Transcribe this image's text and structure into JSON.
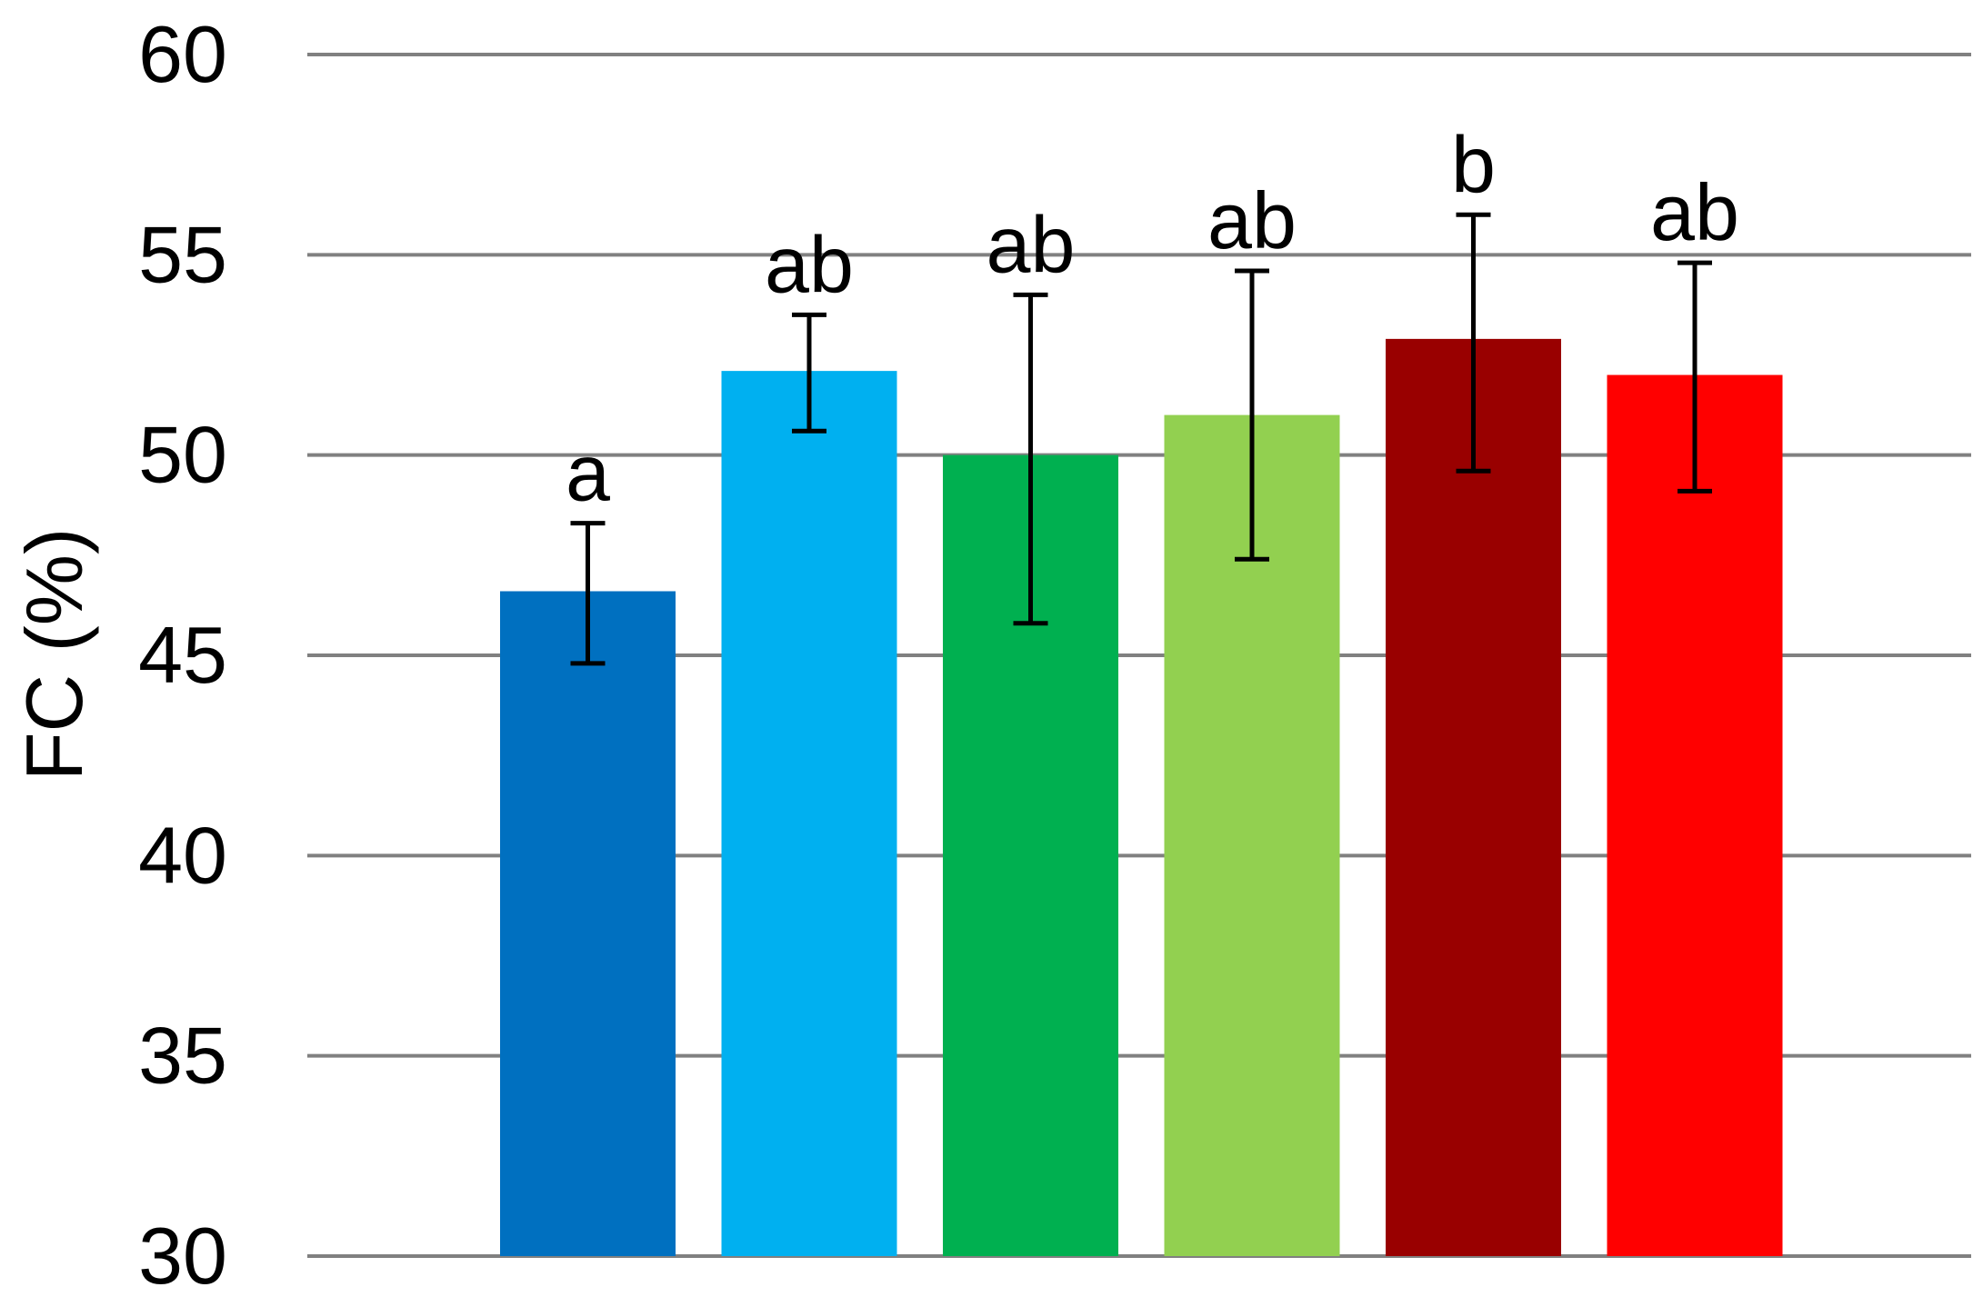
{
  "chart_data": {
    "type": "bar",
    "title": "",
    "xlabel": "",
    "ylabel": "FC (%)",
    "ylim": [
      30,
      60
    ],
    "yticks": [
      30,
      35,
      40,
      45,
      50,
      55,
      60
    ],
    "grid": true,
    "legend": "none",
    "categories": [
      "",
      "",
      "",
      "",
      "",
      ""
    ],
    "values": [
      46.6,
      52.1,
      50.0,
      51.0,
      52.9,
      52.0
    ],
    "error_low": [
      44.8,
      50.6,
      45.8,
      47.4,
      49.6,
      49.1
    ],
    "error_high": [
      48.3,
      53.5,
      54.0,
      54.6,
      56.0,
      54.8
    ],
    "significance_labels": [
      "a",
      "ab",
      "ab",
      "ab",
      "b",
      "ab"
    ],
    "colors": [
      "#0070C0",
      "#00B0F0",
      "#00B050",
      "#92D050",
      "#990000",
      "#FF0000"
    ],
    "grid_color": "#808080"
  }
}
